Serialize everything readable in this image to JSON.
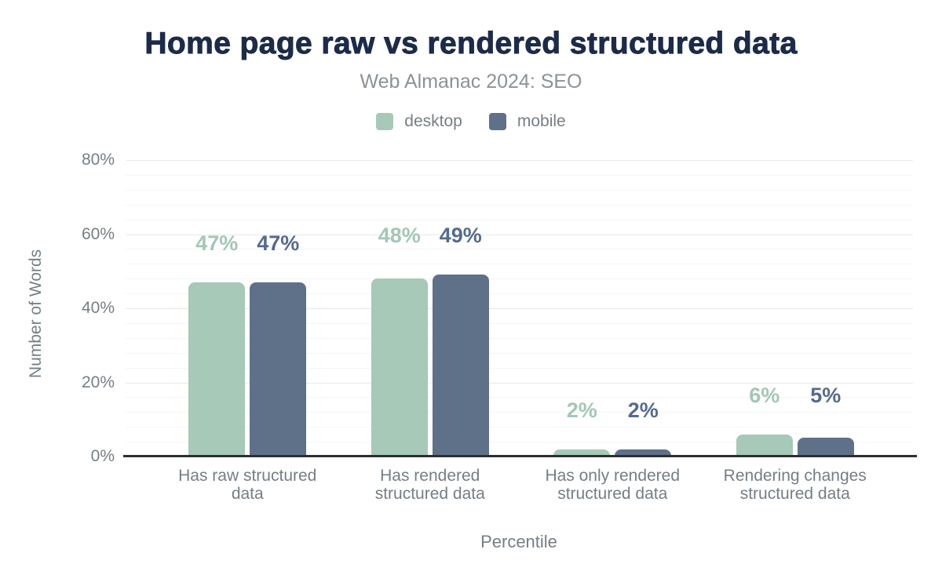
{
  "title": "Home page raw vs rendered structured data",
  "subtitle": "Web Almanac 2024: SEO",
  "legend": {
    "items": [
      {
        "label": "desktop",
        "color": "#a6c9b8"
      },
      {
        "label": "mobile",
        "color": "#5f7189"
      }
    ]
  },
  "colors": {
    "title": "#1c2b49",
    "subtitle": "#8b9299",
    "axis_text": "#757e86",
    "axis_line": "#2b2e33",
    "grid_major": "#e7e9ea",
    "grid_minor": "#f4f5f6",
    "background": "#ffffff"
  },
  "chart_data": {
    "type": "bar",
    "title": "Home page raw vs rendered structured data",
    "subtitle": "Web Almanac 2024: SEO",
    "categories": [
      "Has raw structured\ndata",
      "Has rendered\nstructured data",
      "Has only rendered\nstructured data",
      "Rendering changes\nstructured data"
    ],
    "series": [
      {
        "name": "desktop",
        "color": "#a6c9b8",
        "label_color": "#a3c7b5",
        "values": [
          47,
          48,
          2,
          6
        ]
      },
      {
        "name": "mobile",
        "color": "#5f7189",
        "label_color": "#546a8f",
        "values": [
          47,
          49,
          2,
          5
        ]
      }
    ],
    "data_label_format": "{value}%",
    "xlabel": "Percentile",
    "ylabel": "Number of Words",
    "ylim": [
      0,
      80
    ],
    "y_ticks": [
      {
        "value": 0,
        "label": "0%"
      },
      {
        "value": 20,
        "label": "20%"
      },
      {
        "value": 40,
        "label": "40%"
      },
      {
        "value": 60,
        "label": "60%"
      },
      {
        "value": 80,
        "label": "80%"
      }
    ],
    "minor_grid_step": 4,
    "grid": "on",
    "legend_position": "top-center"
  }
}
